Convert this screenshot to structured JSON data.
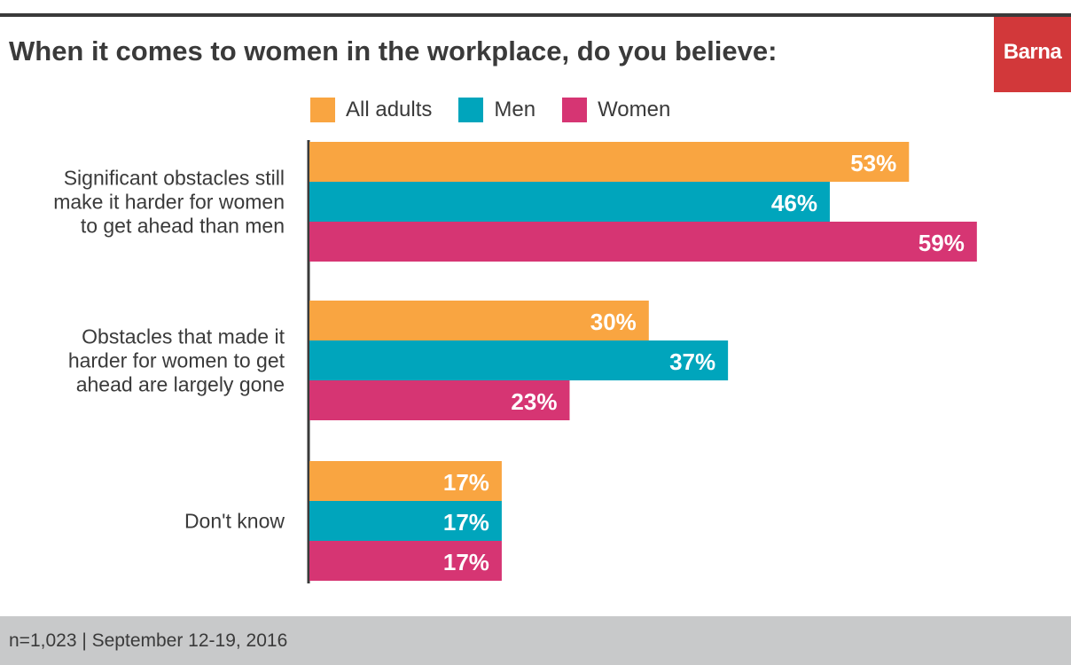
{
  "header": {
    "title": "When it comes to women in the workplace, do you believe:",
    "logo_text": "Barna"
  },
  "footer": {
    "note": "n=1,023 | September 12-19, 2016"
  },
  "chart_data": {
    "type": "bar",
    "orientation": "horizontal",
    "title": "When it comes to women in the workplace, do you believe:",
    "categories": [
      [
        "Significant obstacles still",
        "make it harder for women",
        "to get ahead than men"
      ],
      [
        "Obstacles that made it",
        "harder for women to get",
        "ahead are largely gone"
      ],
      [
        "Don't know"
      ]
    ],
    "series": [
      {
        "name": "All adults",
        "color": "#f9a541",
        "values": [
          53,
          30,
          17
        ]
      },
      {
        "name": "Men",
        "color": "#00a5bc",
        "values": [
          46,
          37,
          17
        ]
      },
      {
        "name": "Women",
        "color": "#d63573",
        "values": [
          59,
          23,
          17
        ]
      }
    ],
    "value_format": "percent",
    "legend_position": "top",
    "grid": false,
    "xlim": [
      0,
      65
    ]
  }
}
